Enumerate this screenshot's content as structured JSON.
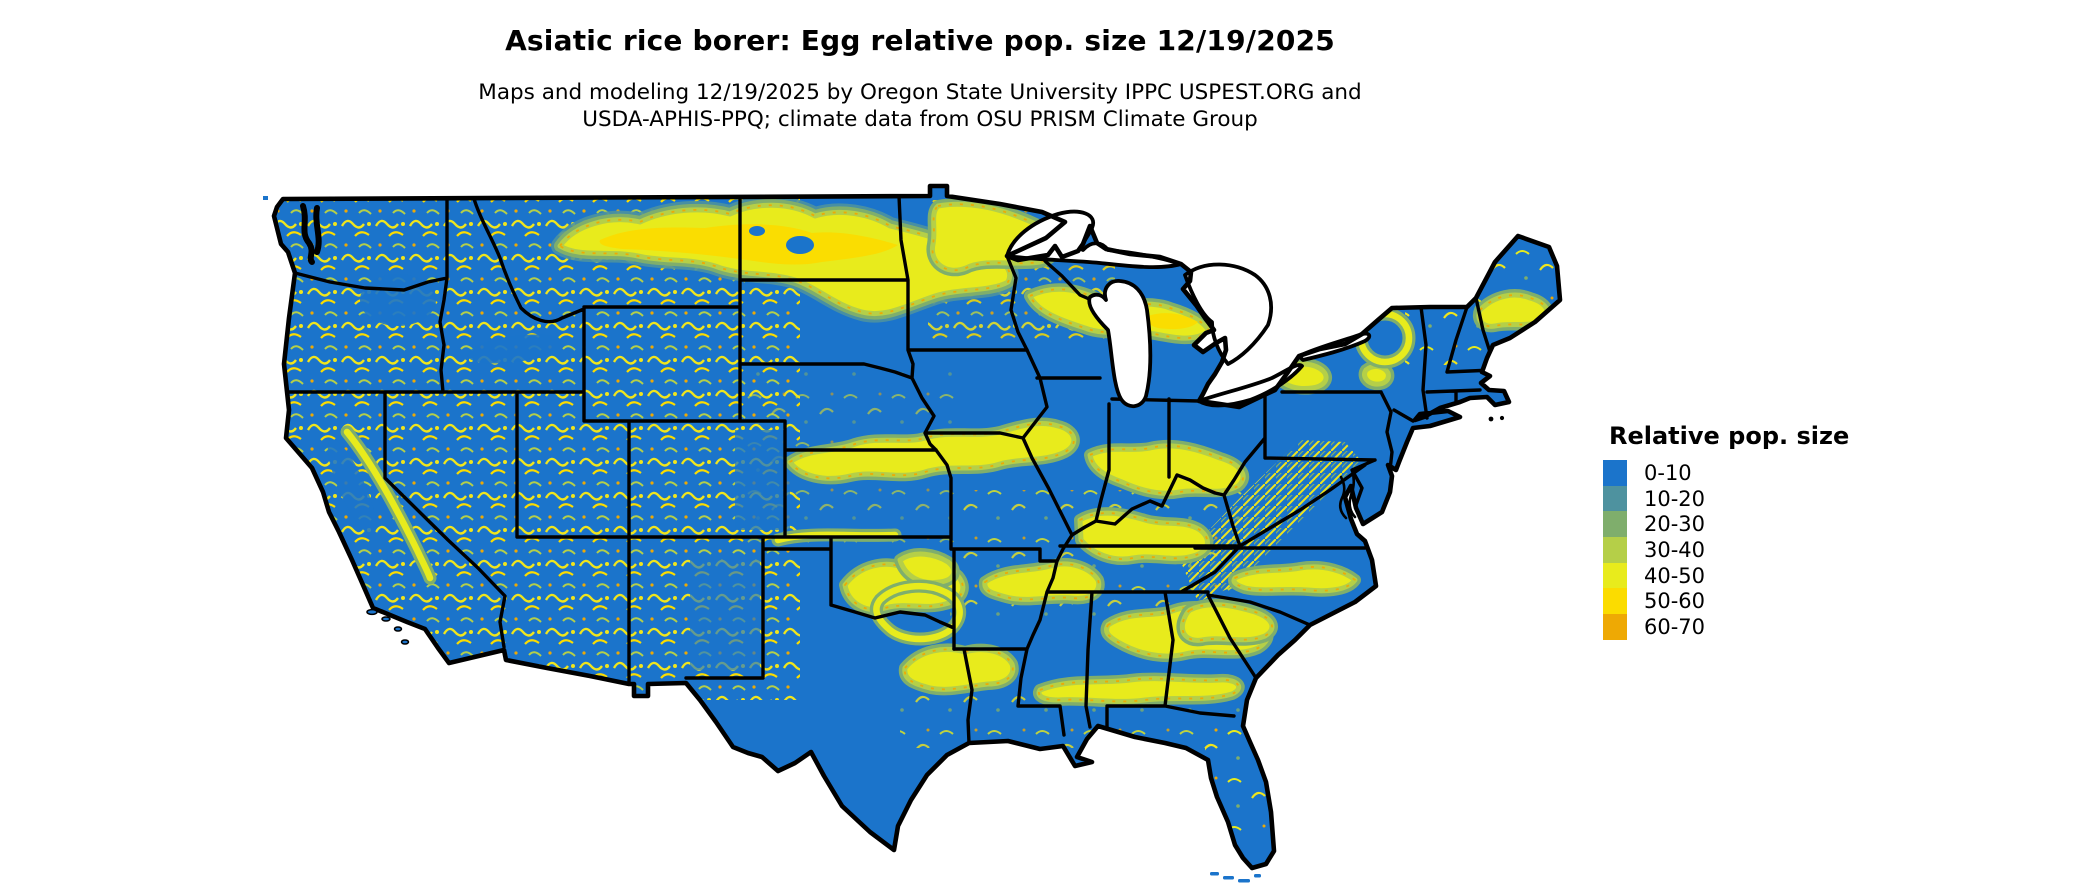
{
  "figure": {
    "title": "Asiatic rice borer: Egg relative pop. size 12/19/2025",
    "subtitle_lines": [
      "Maps and modeling 12/19/2025 by Oregon State University IPPC USPEST.ORG and",
      "USDA-APHIS-PPQ; climate data from OSU PRISM Climate Group"
    ]
  },
  "legend": {
    "title": "Relative pop. size",
    "classes": [
      {
        "label": "0-10",
        "color": "#1B74CB"
      },
      {
        "label": "10-20",
        "color": "#4E929F"
      },
      {
        "label": "20-30",
        "color": "#7FAE6C"
      },
      {
        "label": "30-40",
        "color": "#B5CF48"
      },
      {
        "label": "40-50",
        "color": "#E8EB1C"
      },
      {
        "label": "50-60",
        "color": "#FBDC00"
      },
      {
        "label": "60-70",
        "color": "#EEA904"
      }
    ]
  },
  "map": {
    "region": "Contiguous United States",
    "variable": "Egg relative population size",
    "dominant_fill": "#1B74CB",
    "boundary_color": "#000000",
    "background": "#FFFFFF"
  }
}
